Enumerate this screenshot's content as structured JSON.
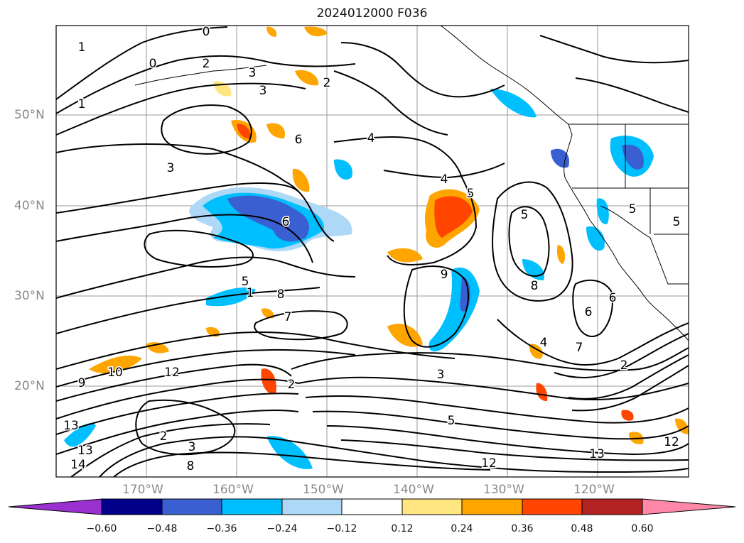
{
  "title": "2024012000 F036",
  "map": {
    "lat_labels": [
      "50°N",
      "40°N",
      "30°N",
      "20°N"
    ],
    "lon_labels": [
      "170°W",
      "160°W",
      "150°W",
      "140°W",
      "130°W",
      "120°W"
    ],
    "contour_labels": [
      "0",
      "0",
      "1",
      "1",
      "2",
      "2",
      "3",
      "3",
      "3",
      "4",
      "4",
      "5",
      "6",
      "6",
      "7",
      "8",
      "9",
      "9",
      "10",
      "12",
      "12",
      "13",
      "13",
      "14",
      "2",
      "3",
      "5",
      "8",
      "5",
      "7",
      "5",
      "6",
      "6",
      "1",
      "2",
      "12",
      "13",
      "5",
      "8",
      "4",
      "3",
      "2",
      "5"
    ]
  },
  "colorbar": {
    "ticks": [
      "−0.60",
      "−0.48",
      "−0.36",
      "−0.24",
      "−0.12",
      "0.12",
      "0.24",
      "0.36",
      "0.48",
      "0.60"
    ],
    "colors": [
      "#9b30d0",
      "#00008b",
      "#3a5fd0",
      "#00bfff",
      "#add8f6",
      "#ffffff",
      "#ffe680",
      "#ffa500",
      "#ff4500",
      "#b22222",
      "#ff88a8"
    ]
  },
  "colors": {
    "land_shade_neg_strong": "#3a5fd0",
    "land_shade_neg": "#00bfff",
    "land_shade_neg_weak": "#add8f6",
    "shade_pos_weak": "#ffe680",
    "shade_pos": "#ffa500",
    "shade_pos_strong": "#ff4500"
  }
}
